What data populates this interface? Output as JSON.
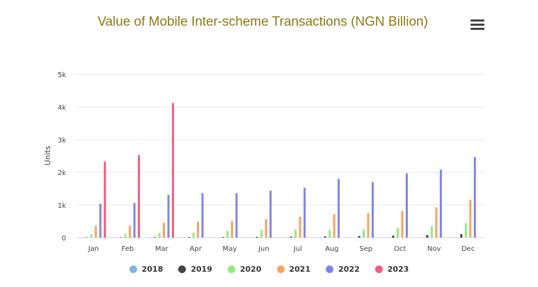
{
  "header": {
    "title": "Value of Mobile Inter-scheme Transactions (NGN Billion)"
  },
  "menu": {
    "icon": "hamburger-menu-icon"
  },
  "chart_data": {
    "type": "bar",
    "title": "Value of Mobile Inter-scheme Transactions (NGN Billion)",
    "xlabel": "",
    "ylabel": "Units",
    "ylim": [
      0,
      5000
    ],
    "yticks": [
      "0",
      "1k",
      "2k",
      "3k",
      "4k",
      "5k"
    ],
    "ytick_values": [
      0,
      1000,
      2000,
      3000,
      4000,
      5000
    ],
    "grid": true,
    "legend": "bottom",
    "categories": [
      "Jan",
      "Feb",
      "Mar",
      "Apr",
      "May",
      "Jun",
      "Jul",
      "Aug",
      "Sep",
      "Oct",
      "Nov",
      "Dec"
    ],
    "series": [
      {
        "name": "2018",
        "color": "#7cb5ec",
        "values": [
          2,
          3,
          4,
          4,
          5,
          6,
          7,
          8,
          9,
          10,
          11,
          12
        ]
      },
      {
        "name": "2019",
        "color": "#434348",
        "values": [
          10,
          12,
          15,
          18,
          20,
          25,
          30,
          40,
          50,
          65,
          80,
          110
        ]
      },
      {
        "name": "2020",
        "color": "#90ed7d",
        "values": [
          110,
          130,
          140,
          150,
          210,
          230,
          250,
          230,
          250,
          300,
          350,
          450
        ]
      },
      {
        "name": "2021",
        "color": "#f7a35c",
        "values": [
          360,
          370,
          460,
          480,
          510,
          570,
          640,
          710,
          750,
          820,
          930,
          1160
        ]
      },
      {
        "name": "2022",
        "color": "#8085e9",
        "values": [
          1040,
          1060,
          1310,
          1360,
          1360,
          1440,
          1530,
          1800,
          1700,
          1970,
          2080,
          2470
        ]
      },
      {
        "name": "2023",
        "color": "#f15c80",
        "values": [
          2330,
          2530,
          4120,
          null,
          null,
          null,
          null,
          null,
          null,
          null,
          null,
          null
        ]
      }
    ]
  }
}
